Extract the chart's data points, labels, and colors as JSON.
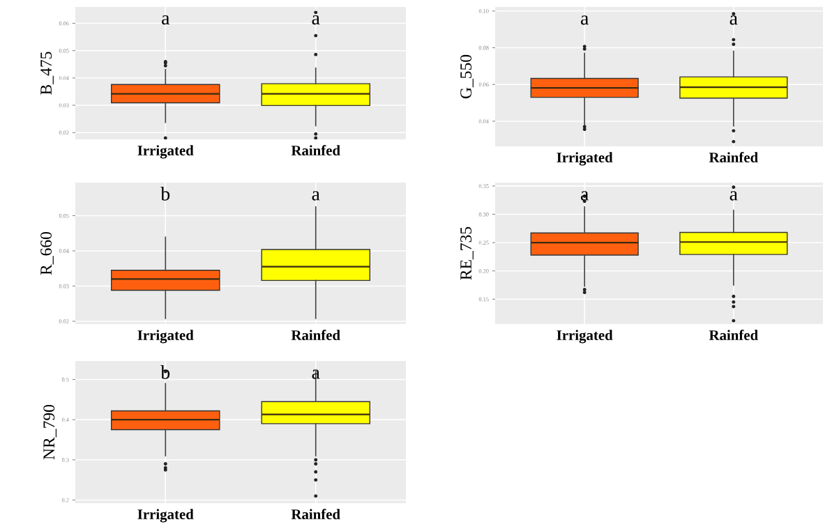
{
  "chart_data": [
    {
      "type": "box",
      "ylabel": "B_475",
      "categories": [
        "Irrigated",
        "Rainfed"
      ],
      "colors": [
        "#ff6010",
        "#ffff00"
      ],
      "ylim": [
        0.0175,
        0.066
      ],
      "yticks": [
        0.02,
        0.03,
        0.04,
        0.05,
        0.06
      ],
      "grid": true,
      "boxes": [
        {
          "low": 0.0237,
          "q1": 0.0309,
          "median": 0.0342,
          "q3": 0.0376,
          "high": 0.0431,
          "outliers": [
            0.0445,
            0.0455,
            0.046,
            0.018
          ]
        },
        {
          "low": 0.0225,
          "q1": 0.0299,
          "median": 0.0342,
          "q3": 0.0379,
          "high": 0.0436,
          "outliers": [
            0.0486,
            0.0555,
            0.064,
            0.0195,
            0.018
          ]
        }
      ],
      "annotations": [
        "a",
        "a"
      ]
    },
    {
      "type": "box",
      "ylabel": "G_550",
      "categories": [
        "Irrigated",
        "Rainfed"
      ],
      "colors": [
        "#ff6010",
        "#ffff00"
      ],
      "ylim": [
        0.0263,
        0.1022
      ],
      "yticks": [
        0.04,
        0.06,
        0.08,
        {
          "value": 0.1,
          "label": "0.10"
        }
      ],
      "grid": true,
      "boxes": [
        {
          "low": 0.0381,
          "q1": 0.053,
          "median": 0.0581,
          "q3": 0.0633,
          "high": 0.077,
          "outliers": [
            0.0807,
            0.0793,
            0.037,
            0.0356
          ]
        },
        {
          "low": 0.0374,
          "q1": 0.0526,
          "median": 0.0585,
          "q3": 0.0641,
          "high": 0.0781,
          "outliers": [
            0.0844,
            0.0819,
            0.0985,
            0.0348,
            0.0289
          ]
        }
      ],
      "annotations": [
        "a",
        "a"
      ]
    },
    {
      "type": "box",
      "ylabel": "R_660",
      "categories": [
        "Irrigated",
        "Rainfed"
      ],
      "colors": [
        "#ff6010",
        "#ffff00"
      ],
      "ylim": [
        0.0192,
        0.0594
      ],
      "yticks": [
        0.02,
        0.03,
        0.04,
        0.05
      ],
      "grid": true,
      "boxes": [
        {
          "low": 0.0208,
          "q1": 0.0288,
          "median": 0.032,
          "q3": 0.0345,
          "high": 0.0439
        },
        {
          "low": 0.0208,
          "q1": 0.0316,
          "median": 0.0355,
          "q3": 0.0404,
          "high": 0.0525
        }
      ],
      "annotations": [
        "b",
        "a"
      ]
    },
    {
      "type": "box",
      "ylabel": "RE_735",
      "categories": [
        "Irrigated",
        "Rainfed"
      ],
      "colors": [
        "#ff6010",
        "#ffff00"
      ],
      "ylim": [
        0.106,
        0.356
      ],
      "yticks": [
        0.15,
        {
          "value": 0.2,
          "label": "0.20"
        },
        0.25,
        {
          "value": 0.3,
          "label": "0.30"
        },
        0.35
      ],
      "grid": true,
      "boxes": [
        {
          "low": 0.173,
          "q1": 0.228,
          "median": 0.25,
          "q3": 0.267,
          "high": 0.313,
          "outliers": [
            0.332,
            0.323,
            0.167,
            0.162
          ]
        },
        {
          "low": 0.175,
          "q1": 0.229,
          "median": 0.251,
          "q3": 0.268,
          "high": 0.307,
          "outliers": [
            0.348,
            0.155,
            0.145,
            0.137,
            0.112
          ]
        }
      ],
      "annotations": [
        "a",
        "a"
      ]
    },
    {
      "type": "box",
      "ylabel": "NR_790",
      "categories": [
        "Irrigated",
        "Rainfed"
      ],
      "colors": [
        "#ff6010",
        "#ffff00"
      ],
      "ylim": [
        0.192,
        0.546
      ],
      "yticks": [
        0.2,
        0.3,
        0.4,
        0.5
      ],
      "grid": true,
      "boxes": [
        {
          "low": 0.31,
          "q1": 0.375,
          "median": 0.4,
          "q3": 0.422,
          "high": 0.49,
          "outliers": [
            0.52,
            0.29,
            0.28,
            0.275
          ]
        },
        {
          "low": 0.31,
          "q1": 0.39,
          "median": 0.413,
          "q3": 0.445,
          "high": 0.52,
          "outliers": [
            0.3,
            0.29,
            0.27,
            0.25,
            0.21
          ]
        }
      ],
      "annotations": [
        "b",
        "a"
      ]
    }
  ]
}
